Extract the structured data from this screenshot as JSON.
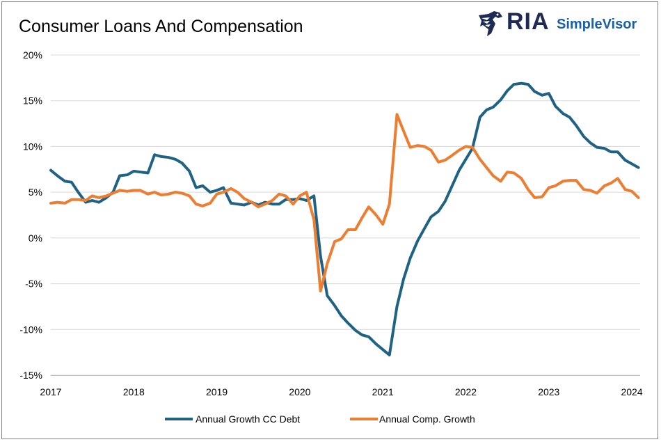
{
  "header": {
    "title": "Consumer Loans And Compensation",
    "logo": {
      "brand": "RIA",
      "product": "SimpleVisor",
      "icon": "eagle-icon",
      "brand_color": "#1f2b54",
      "product_color": "#1a5fa8"
    }
  },
  "chart_data": {
    "type": "line",
    "title": "Consumer Loans And Compensation",
    "xlabel": "",
    "ylabel": "",
    "x_ticks": [
      "2017",
      "2018",
      "2019",
      "2020",
      "2021",
      "2022",
      "2023",
      "2024"
    ],
    "x_range": [
      2017.0,
      2024.1
    ],
    "y_ticks": [
      "20%",
      "15%",
      "10%",
      "5%",
      "0%",
      "-5%",
      "-10%",
      "-15%"
    ],
    "ylim": [
      -15,
      20
    ],
    "grid": true,
    "legend_position": "bottom",
    "series": [
      {
        "name": "Annual Growth CC Debt",
        "color": "#1f6284",
        "points": [
          [
            2017.0,
            7.4
          ],
          [
            2017.08,
            6.8
          ],
          [
            2017.17,
            6.2
          ],
          [
            2017.25,
            6.1
          ],
          [
            2017.33,
            5.0
          ],
          [
            2017.42,
            3.9
          ],
          [
            2017.5,
            4.1
          ],
          [
            2017.58,
            3.9
          ],
          [
            2017.67,
            4.4
          ],
          [
            2017.75,
            5.0
          ],
          [
            2017.83,
            6.8
          ],
          [
            2017.92,
            6.9
          ],
          [
            2018.0,
            7.3
          ],
          [
            2018.08,
            7.2
          ],
          [
            2018.17,
            7.1
          ],
          [
            2018.25,
            9.1
          ],
          [
            2018.33,
            8.9
          ],
          [
            2018.42,
            8.8
          ],
          [
            2018.5,
            8.6
          ],
          [
            2018.58,
            8.2
          ],
          [
            2018.67,
            7.3
          ],
          [
            2018.75,
            5.5
          ],
          [
            2018.83,
            5.7
          ],
          [
            2018.92,
            5.0
          ],
          [
            2019.0,
            5.2
          ],
          [
            2019.08,
            5.5
          ],
          [
            2019.17,
            3.8
          ],
          [
            2019.25,
            3.7
          ],
          [
            2019.33,
            3.6
          ],
          [
            2019.42,
            3.9
          ],
          [
            2019.5,
            3.6
          ],
          [
            2019.58,
            3.9
          ],
          [
            2019.67,
            3.7
          ],
          [
            2019.75,
            3.7
          ],
          [
            2019.83,
            4.2
          ],
          [
            2019.92,
            4.2
          ],
          [
            2020.0,
            4.3
          ],
          [
            2020.08,
            4.1
          ],
          [
            2020.17,
            4.6
          ],
          [
            2020.25,
            -2.0
          ],
          [
            2020.33,
            -6.3
          ],
          [
            2020.42,
            -7.4
          ],
          [
            2020.5,
            -8.5
          ],
          [
            2020.58,
            -9.3
          ],
          [
            2020.67,
            -10.1
          ],
          [
            2020.75,
            -10.6
          ],
          [
            2020.83,
            -10.8
          ],
          [
            2020.92,
            -11.6
          ],
          [
            2021.0,
            -12.2
          ],
          [
            2021.08,
            -12.8
          ],
          [
            2021.17,
            -7.5
          ],
          [
            2021.25,
            -4.5
          ],
          [
            2021.33,
            -2.2
          ],
          [
            2021.42,
            -0.3
          ],
          [
            2021.5,
            1.0
          ],
          [
            2021.58,
            2.3
          ],
          [
            2021.67,
            2.9
          ],
          [
            2021.75,
            4.0
          ],
          [
            2021.83,
            5.6
          ],
          [
            2021.92,
            7.4
          ],
          [
            2022.0,
            8.6
          ],
          [
            2022.08,
            9.8
          ],
          [
            2022.17,
            13.2
          ],
          [
            2022.25,
            14.0
          ],
          [
            2022.33,
            14.3
          ],
          [
            2022.42,
            15.1
          ],
          [
            2022.5,
            16.1
          ],
          [
            2022.58,
            16.8
          ],
          [
            2022.67,
            16.9
          ],
          [
            2022.75,
            16.8
          ],
          [
            2022.83,
            16.0
          ],
          [
            2022.92,
            15.6
          ],
          [
            2023.0,
            15.8
          ],
          [
            2023.08,
            14.4
          ],
          [
            2023.17,
            13.6
          ],
          [
            2023.25,
            13.2
          ],
          [
            2023.33,
            12.3
          ],
          [
            2023.42,
            11.1
          ],
          [
            2023.5,
            10.4
          ],
          [
            2023.58,
            9.9
          ],
          [
            2023.67,
            9.8
          ],
          [
            2023.75,
            9.4
          ],
          [
            2023.83,
            9.4
          ],
          [
            2023.92,
            8.5
          ],
          [
            2024.0,
            8.1
          ],
          [
            2024.08,
            7.7
          ]
        ]
      },
      {
        "name": "Annual Comp. Growth",
        "color": "#ed7d31",
        "points": [
          [
            2017.0,
            3.8
          ],
          [
            2017.08,
            3.9
          ],
          [
            2017.17,
            3.8
          ],
          [
            2017.25,
            4.2
          ],
          [
            2017.33,
            4.2
          ],
          [
            2017.42,
            4.1
          ],
          [
            2017.5,
            4.6
          ],
          [
            2017.58,
            4.4
          ],
          [
            2017.67,
            4.6
          ],
          [
            2017.75,
            4.9
          ],
          [
            2017.83,
            5.2
          ],
          [
            2017.92,
            5.1
          ],
          [
            2018.0,
            5.2
          ],
          [
            2018.08,
            5.2
          ],
          [
            2018.17,
            4.8
          ],
          [
            2018.25,
            5.0
          ],
          [
            2018.33,
            4.7
          ],
          [
            2018.42,
            4.8
          ],
          [
            2018.5,
            5.0
          ],
          [
            2018.58,
            4.9
          ],
          [
            2018.67,
            4.6
          ],
          [
            2018.75,
            3.7
          ],
          [
            2018.83,
            3.5
          ],
          [
            2018.92,
            3.8
          ],
          [
            2019.0,
            4.8
          ],
          [
            2019.08,
            5.0
          ],
          [
            2019.17,
            5.4
          ],
          [
            2019.25,
            5.0
          ],
          [
            2019.33,
            4.3
          ],
          [
            2019.42,
            3.9
          ],
          [
            2019.5,
            3.4
          ],
          [
            2019.58,
            3.7
          ],
          [
            2019.67,
            4.1
          ],
          [
            2019.75,
            4.8
          ],
          [
            2019.83,
            4.6
          ],
          [
            2019.92,
            3.7
          ],
          [
            2020.0,
            4.6
          ],
          [
            2020.08,
            5.0
          ],
          [
            2020.17,
            2.0
          ],
          [
            2020.25,
            -5.8
          ],
          [
            2020.33,
            -2.8
          ],
          [
            2020.42,
            -0.4
          ],
          [
            2020.5,
            -0.1
          ],
          [
            2020.58,
            0.9
          ],
          [
            2020.67,
            0.9
          ],
          [
            2020.75,
            2.2
          ],
          [
            2020.83,
            3.4
          ],
          [
            2020.92,
            2.5
          ],
          [
            2021.0,
            1.5
          ],
          [
            2021.08,
            3.7
          ],
          [
            2021.17,
            13.5
          ],
          [
            2021.25,
            11.7
          ],
          [
            2021.33,
            9.9
          ],
          [
            2021.42,
            10.1
          ],
          [
            2021.5,
            10.0
          ],
          [
            2021.58,
            9.6
          ],
          [
            2021.67,
            8.3
          ],
          [
            2021.75,
            8.5
          ],
          [
            2021.83,
            9.0
          ],
          [
            2021.92,
            9.6
          ],
          [
            2022.0,
            10.0
          ],
          [
            2022.08,
            9.9
          ],
          [
            2022.17,
            8.6
          ],
          [
            2022.25,
            7.7
          ],
          [
            2022.33,
            6.8
          ],
          [
            2022.42,
            6.2
          ],
          [
            2022.5,
            7.2
          ],
          [
            2022.58,
            7.1
          ],
          [
            2022.67,
            6.5
          ],
          [
            2022.75,
            5.3
          ],
          [
            2022.83,
            4.4
          ],
          [
            2022.92,
            4.5
          ],
          [
            2023.0,
            5.5
          ],
          [
            2023.08,
            5.7
          ],
          [
            2023.17,
            6.2
          ],
          [
            2023.25,
            6.3
          ],
          [
            2023.33,
            6.3
          ],
          [
            2023.42,
            5.3
          ],
          [
            2023.5,
            5.2
          ],
          [
            2023.58,
            4.9
          ],
          [
            2023.67,
            5.7
          ],
          [
            2023.75,
            6.0
          ],
          [
            2023.83,
            6.5
          ],
          [
            2023.92,
            5.3
          ],
          [
            2024.0,
            5.1
          ],
          [
            2024.08,
            4.4
          ]
        ]
      }
    ]
  }
}
